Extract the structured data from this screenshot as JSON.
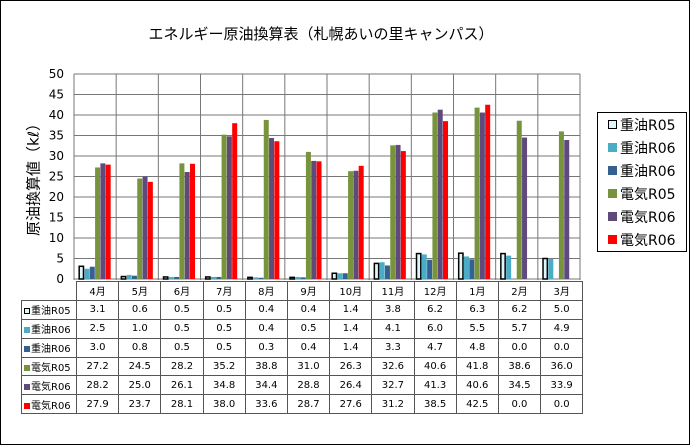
{
  "chart_data": {
    "type": "bar",
    "title": "エネルギー原油換算表（札幌あいの里キャンパス）",
    "ylabel": "原油換算値（kℓ）",
    "ylim": [
      0,
      50
    ],
    "yticks": [
      0,
      5,
      10,
      15,
      20,
      25,
      30,
      35,
      40,
      45,
      50
    ],
    "grid": true,
    "legend_position": "right",
    "categories": [
      "4月",
      "5月",
      "6月",
      "7月",
      "8月",
      "9月",
      "10月",
      "11月",
      "12月",
      "1月",
      "2月",
      "3月"
    ],
    "series": [
      {
        "name": "重油R05",
        "color": "#dff7fa",
        "border": "#000000",
        "values": [
          3.1,
          0.6,
          0.5,
          0.5,
          0.4,
          0.4,
          1.4,
          3.8,
          6.2,
          6.3,
          6.2,
          5.0
        ]
      },
      {
        "name": "重油R06",
        "color": "#4bacc6",
        "values": [
          2.5,
          1.0,
          0.5,
          0.5,
          0.4,
          0.5,
          1.4,
          4.1,
          6.0,
          5.5,
          5.7,
          4.9
        ]
      },
      {
        "name": "重油R06",
        "color": "#376092",
        "values": [
          3.0,
          0.8,
          0.5,
          0.5,
          0.3,
          0.4,
          1.4,
          3.3,
          4.7,
          4.8,
          0.0,
          0.0
        ]
      },
      {
        "name": "電気R05",
        "color": "#77933c",
        "values": [
          27.2,
          24.5,
          28.2,
          35.2,
          38.8,
          31.0,
          26.3,
          32.6,
          40.6,
          41.8,
          38.6,
          36.0
        ]
      },
      {
        "name": "電気R06",
        "color": "#604a7b",
        "values": [
          28.2,
          25.0,
          26.1,
          34.8,
          34.4,
          28.8,
          26.4,
          32.7,
          41.3,
          40.6,
          34.5,
          33.9
        ]
      },
      {
        "name": "電気R06",
        "color": "#ff0000",
        "values": [
          27.9,
          23.7,
          28.1,
          38.0,
          33.6,
          28.7,
          27.6,
          31.2,
          38.5,
          42.5,
          0.0,
          0.0
        ]
      }
    ]
  }
}
